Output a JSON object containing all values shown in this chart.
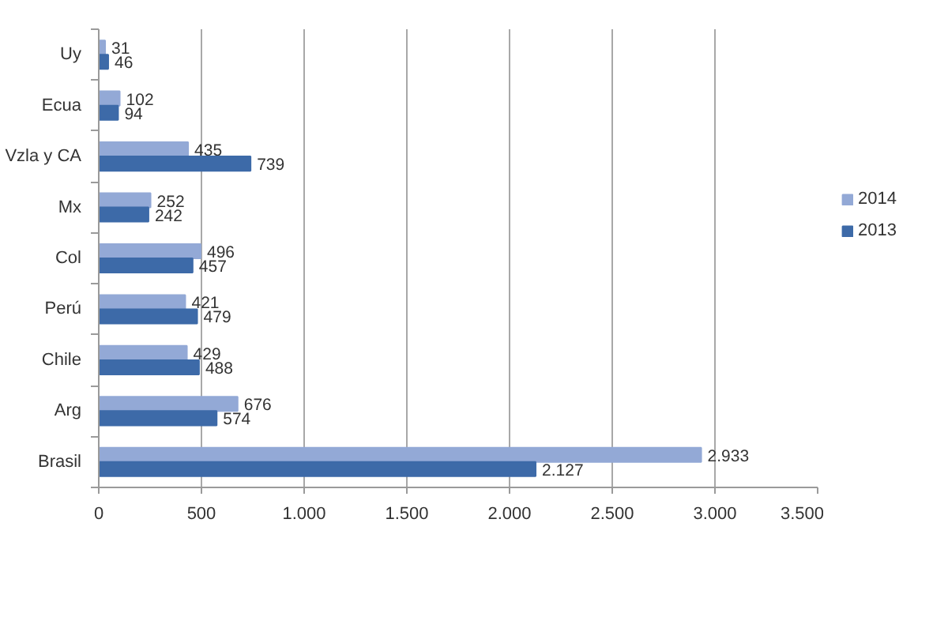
{
  "chart_data": {
    "type": "bar",
    "orientation": "horizontal",
    "categories": [
      "Uy",
      "Ecua",
      "Vzla y CA",
      "Mx",
      "Col",
      "Perú",
      "Chile",
      "Arg",
      "Brasil"
    ],
    "series": [
      {
        "name": "2014",
        "color": "#93a9d6",
        "values": [
          31,
          102,
          435,
          252,
          496,
          421,
          429,
          676,
          2933
        ],
        "value_labels": [
          "31",
          "102",
          "435",
          "252",
          "496",
          "421",
          "429",
          "676",
          "2.933"
        ]
      },
      {
        "name": "2013",
        "color": "#3d6aa8",
        "values": [
          46,
          94,
          739,
          242,
          457,
          479,
          488,
          574,
          2127
        ],
        "value_labels": [
          "46",
          "94",
          "739",
          "242",
          "457",
          "479",
          "488",
          "574",
          "2.127"
        ]
      }
    ],
    "xlim": [
      0,
      3500
    ],
    "xticks": [
      0,
      500,
      {
        "value": 1000,
        "label": "1.000"
      },
      {
        "value": 1500,
        "label": "1.500"
      },
      {
        "value": 2000,
        "label": "2.000"
      },
      {
        "value": 2500,
        "label": "2.500"
      },
      {
        "value": 3000,
        "label": "3.000"
      },
      {
        "value": 3500,
        "label": "3.500"
      }
    ],
    "grid": "x",
    "legend": "right"
  }
}
